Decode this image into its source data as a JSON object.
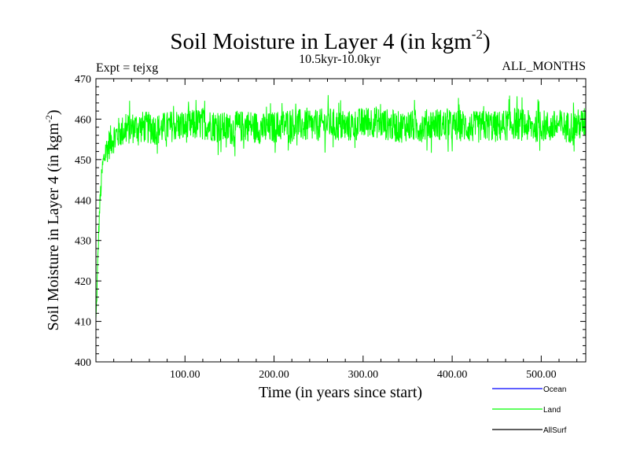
{
  "chart_data": {
    "type": "line",
    "title": "Soil Moisture in Layer 4 (in kgm",
    "title_superscript": "-2",
    "title_close": ")",
    "subtitle_left": "Expt = tejxg",
    "subtitle_center": "10.5kyr-10.0kyr",
    "subtitle_right": "ALL_MONTHS",
    "xlabel": "Time (in years since start)",
    "ylabel": "Soil Moisture in Layer 4 (in kgm",
    "ylabel_superscript": "-2",
    "ylabel_close": ")",
    "xlim": [
      0,
      550
    ],
    "ylim": [
      400,
      470
    ],
    "xticks": [
      100,
      200,
      300,
      400,
      500
    ],
    "xtick_labels": [
      "100.00",
      "200.00",
      "300.00",
      "400.00",
      "500.00"
    ],
    "yticks": [
      400,
      410,
      420,
      430,
      440,
      450,
      460,
      470
    ],
    "ytick_labels": [
      "400",
      "410",
      "420",
      "430",
      "440",
      "450",
      "460",
      "470"
    ],
    "grid": false,
    "legend_position": "bottom-right, below plot",
    "series": [
      {
        "name": "Ocean",
        "color": "#0000ff",
        "values": []
      },
      {
        "name": "Land",
        "color": "#00ff00",
        "x": [
          0,
          1,
          2,
          3,
          4,
          5,
          6,
          7,
          8,
          10,
          12,
          15,
          18,
          20,
          25,
          30,
          35,
          40,
          45,
          50,
          55,
          60,
          70,
          80,
          90,
          100,
          110,
          120,
          130,
          140,
          150,
          160,
          170,
          180,
          190,
          200,
          210,
          220,
          230,
          240,
          250,
          260,
          270,
          280,
          290,
          300,
          310,
          320,
          330,
          340,
          350,
          360,
          370,
          380,
          390,
          400,
          410,
          420,
          430,
          440,
          450,
          460,
          470,
          480,
          490,
          500,
          510,
          520,
          530,
          540,
          550
        ],
        "values": [
          410,
          416,
          424,
          431,
          437,
          441,
          444,
          447,
          449,
          451,
          452.5,
          454,
          455,
          455.5,
          456.5,
          457,
          457.5,
          457.8,
          458,
          458,
          458,
          457.8,
          457.5,
          458,
          458.5,
          458,
          458.5,
          459,
          458.5,
          458,
          457.5,
          458,
          458.5,
          458,
          457.5,
          458,
          458.5,
          459,
          458.5,
          458,
          458.5,
          459,
          458.5,
          458,
          458.5,
          459,
          459.5,
          459,
          458.5,
          458,
          458.5,
          458,
          458.5,
          459,
          458.5,
          458,
          458.5,
          458,
          458,
          458.5,
          458,
          458.5,
          459,
          458.5,
          458,
          458.5,
          458,
          458.5,
          458,
          458.5,
          459
        ],
        "noise_amplitude": 4
      },
      {
        "name": "AllSurf",
        "color": "#000000",
        "values": []
      }
    ]
  }
}
